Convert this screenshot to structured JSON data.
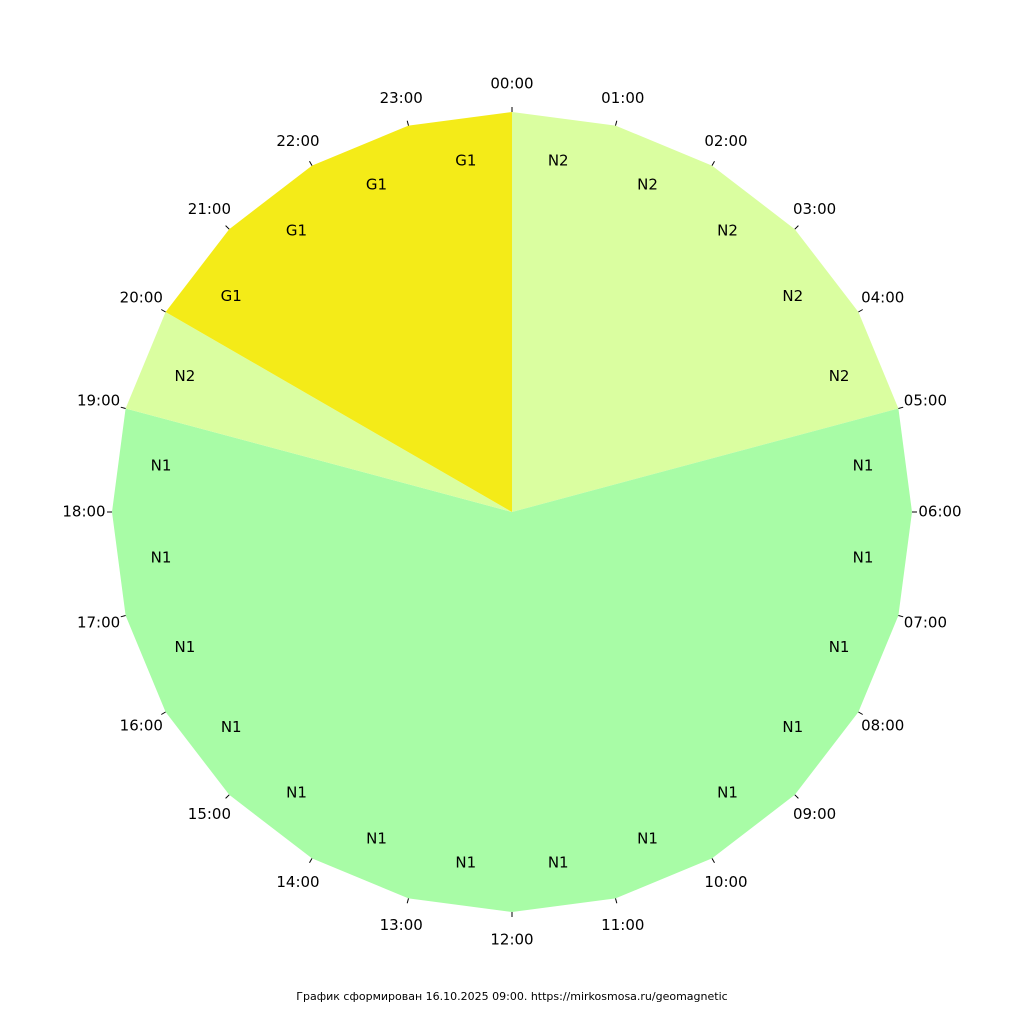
{
  "chart_data": {
    "type": "pie",
    "description_type": "24-hour geomagnetic activity clock chart",
    "hours": [
      "00:00",
      "01:00",
      "02:00",
      "03:00",
      "04:00",
      "05:00",
      "06:00",
      "07:00",
      "08:00",
      "09:00",
      "10:00",
      "11:00",
      "12:00",
      "13:00",
      "14:00",
      "15:00",
      "16:00",
      "17:00",
      "18:00",
      "19:00",
      "20:00",
      "21:00",
      "22:00",
      "23:00"
    ],
    "levels": [
      "N2",
      "N2",
      "N2",
      "N2",
      "N2",
      "N1",
      "N1",
      "N1",
      "N1",
      "N1",
      "N1",
      "N1",
      "N1",
      "N1",
      "N1",
      "N1",
      "N1",
      "N1",
      "N1",
      "N2",
      "G1",
      "G1",
      "G1",
      "G1"
    ],
    "level_colors": {
      "N1": "#a8fca6",
      "N2": "#dafea0",
      "G1": "#f4eb18"
    }
  },
  "footer": {
    "text": "График сформирован 16.10.2025 09:00. https://mirkosmosa.ru/geomagnetic"
  }
}
